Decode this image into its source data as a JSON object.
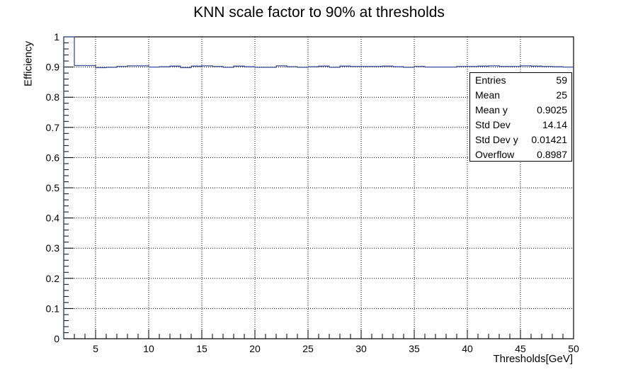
{
  "chart_data": {
    "type": "histogram-step",
    "title": "KNN scale factor to 90% at thresholds",
    "xlabel": "Thresholds[GeV]",
    "ylabel": "Efficiency",
    "xlim": [
      2,
      50
    ],
    "ylim": [
      0,
      1
    ],
    "grid": true,
    "color": "#3b4f9a",
    "x_ticks": [
      5,
      10,
      15,
      20,
      25,
      30,
      35,
      40,
      45,
      50
    ],
    "y_ticks": [
      "0",
      "0.1",
      "0.2",
      "0.3",
      "0.4",
      "0.5",
      "0.6",
      "0.7",
      "0.8",
      "0.9",
      "1"
    ],
    "bin_width": 1,
    "x_start": 2,
    "values": [
      1.0,
      0.905,
      0.905,
      0.898,
      0.899,
      0.902,
      0.904,
      0.904,
      0.9,
      0.901,
      0.903,
      0.898,
      0.903,
      0.904,
      0.902,
      0.899,
      0.903,
      0.901,
      0.899,
      0.899,
      0.904,
      0.901,
      0.899,
      0.901,
      0.903,
      0.899,
      0.903,
      0.902,
      0.902,
      0.902,
      0.903,
      0.901,
      0.899,
      0.902,
      0.9,
      0.9,
      0.9,
      0.902,
      0.902,
      0.903,
      0.904,
      0.902,
      0.902,
      0.904,
      0.903,
      0.902,
      0.901,
      0.9
    ]
  },
  "stats": [
    {
      "label": "Entries",
      "value": "59"
    },
    {
      "label": "Mean",
      "value": "25"
    },
    {
      "label": "Mean y",
      "value": "0.9025"
    },
    {
      "label": "Std Dev",
      "value": "14.14"
    },
    {
      "label": "Std Dev y",
      "value": "0.01421"
    },
    {
      "label": "Overflow",
      "value": "0.8987"
    }
  ]
}
